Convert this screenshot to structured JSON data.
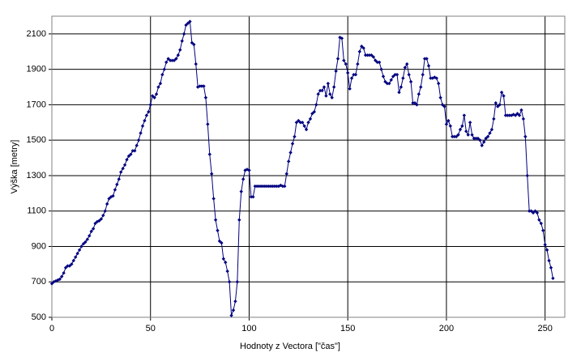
{
  "chart_data": {
    "type": "line",
    "xlabel": "Hodnoty z Vectora [\"čas\"]",
    "ylabel": "Výška [metry]",
    "xlim": [
      0,
      260
    ],
    "xticks": [
      0,
      50,
      100,
      150,
      200,
      250
    ],
    "ylim": [
      500,
      2200
    ],
    "yticks": [
      500,
      700,
      900,
      1100,
      1300,
      1500,
      1700,
      1900,
      2100
    ],
    "grid": true,
    "series": [
      {
        "color": "#000080",
        "x": [
          0,
          1,
          2,
          3,
          4,
          5,
          6,
          7,
          8,
          9,
          10,
          11,
          12,
          13,
          14,
          15,
          16,
          17,
          18,
          19,
          20,
          21,
          22,
          23,
          24,
          25,
          26,
          27,
          28,
          29,
          30,
          31,
          32,
          33,
          34,
          35,
          36,
          37,
          38,
          39,
          40,
          41,
          42,
          43,
          44,
          45,
          46,
          47,
          48,
          49,
          50,
          51,
          52,
          53,
          54,
          55,
          56,
          57,
          58,
          59,
          60,
          61,
          62,
          63,
          64,
          65,
          66,
          67,
          68,
          69,
          70,
          71,
          72,
          73,
          74,
          75,
          76,
          77,
          78,
          79,
          80,
          81,
          82,
          83,
          84,
          85,
          86,
          87,
          88,
          89,
          90,
          91,
          92,
          93,
          94,
          95,
          96,
          97,
          98,
          99,
          100,
          101,
          102,
          103,
          104,
          105,
          106,
          107,
          108,
          109,
          110,
          111,
          112,
          113,
          114,
          115,
          116,
          117,
          118,
          119,
          120,
          121,
          122,
          123,
          124,
          125,
          126,
          127,
          128,
          129,
          130,
          131,
          132,
          133,
          134,
          135,
          136,
          137,
          138,
          139,
          140,
          141,
          142,
          143,
          144,
          145,
          146,
          147,
          148,
          149,
          150,
          151,
          152,
          153,
          154,
          155,
          156,
          157,
          158,
          159,
          160,
          161,
          162,
          163,
          164,
          165,
          166,
          167,
          168,
          169,
          170,
          171,
          172,
          173,
          174,
          175,
          176,
          177,
          178,
          179,
          180,
          181,
          182,
          183,
          184,
          185,
          186,
          187,
          188,
          189,
          190,
          191,
          192,
          193,
          194,
          195,
          196,
          197,
          198,
          199,
          200,
          201,
          202,
          203,
          204,
          205,
          206,
          207,
          208,
          209,
          210,
          211,
          212,
          213,
          214,
          215,
          216,
          217,
          218,
          219,
          220,
          221,
          222,
          223,
          224,
          225,
          226,
          227,
          228,
          229,
          230,
          231,
          232,
          233,
          234,
          235,
          236,
          237,
          238,
          239,
          240,
          241,
          242,
          243,
          244,
          245,
          246,
          247,
          248,
          249,
          250,
          251,
          252,
          253,
          254
        ],
        "values": [
          690,
          700,
          705,
          710,
          715,
          730,
          750,
          780,
          790,
          790,
          800,
          820,
          840,
          860,
          880,
          900,
          915,
          925,
          940,
          960,
          985,
          1000,
          1030,
          1040,
          1045,
          1055,
          1075,
          1100,
          1140,
          1170,
          1180,
          1185,
          1220,
          1250,
          1280,
          1320,
          1340,
          1360,
          1390,
          1410,
          1420,
          1440,
          1440,
          1470,
          1500,
          1540,
          1580,
          1610,
          1640,
          1660,
          1700,
          1750,
          1740,
          1760,
          1800,
          1820,
          1870,
          1900,
          1940,
          1960,
          1950,
          1950,
          1950,
          1960,
          1980,
          2010,
          2060,
          2100,
          2150,
          2160,
          2170,
          2050,
          2040,
          1930,
          1800,
          1805,
          1805,
          1805,
          1740,
          1590,
          1420,
          1310,
          1170,
          1050,
          990,
          930,
          920,
          830,
          810,
          760,
          700,
          510,
          540,
          590,
          700,
          1050,
          1210,
          1280,
          1330,
          1335,
          1330,
          1180,
          1180,
          1240,
          1240,
          1240,
          1240,
          1240,
          1240,
          1240,
          1240,
          1240,
          1240,
          1240,
          1240,
          1240,
          1245,
          1240,
          1240,
          1310,
          1380,
          1430,
          1480,
          1520,
          1600,
          1610,
          1600,
          1600,
          1580,
          1560,
          1600,
          1620,
          1650,
          1660,
          1700,
          1760,
          1780,
          1780,
          1800,
          1750,
          1820,
          1760,
          1740,
          1800,
          1890,
          1960,
          2080,
          2075,
          1950,
          1930,
          1880,
          1790,
          1850,
          1870,
          1870,
          1930,
          2000,
          2030,
          2020,
          1980,
          1980,
          1980,
          1980,
          1970,
          1950,
          1940,
          1940,
          1900,
          1860,
          1830,
          1820,
          1820,
          1840,
          1860,
          1870,
          1870,
          1770,
          1800,
          1850,
          1910,
          1930,
          1870,
          1830,
          1710,
          1710,
          1700,
          1760,
          1800,
          1870,
          1960,
          1960,
          1920,
          1850,
          1850,
          1855,
          1850,
          1820,
          1740,
          1700,
          1690,
          1590,
          1610,
          1580,
          1520,
          1520,
          1520,
          1530,
          1560,
          1580,
          1640,
          1550,
          1530,
          1600,
          1530,
          1510,
          1510,
          1510,
          1500,
          1470,
          1490,
          1510,
          1520,
          1540,
          1560,
          1620,
          1710,
          1690,
          1700,
          1770,
          1750,
          1640,
          1640,
          1640,
          1640,
          1645,
          1640,
          1650,
          1640,
          1670,
          1620,
          1520,
          1300,
          1100,
          1100,
          1090,
          1100,
          1090,
          1050,
          1030,
          990,
          910,
          880,
          820,
          780,
          720
        ]
      }
    ]
  }
}
